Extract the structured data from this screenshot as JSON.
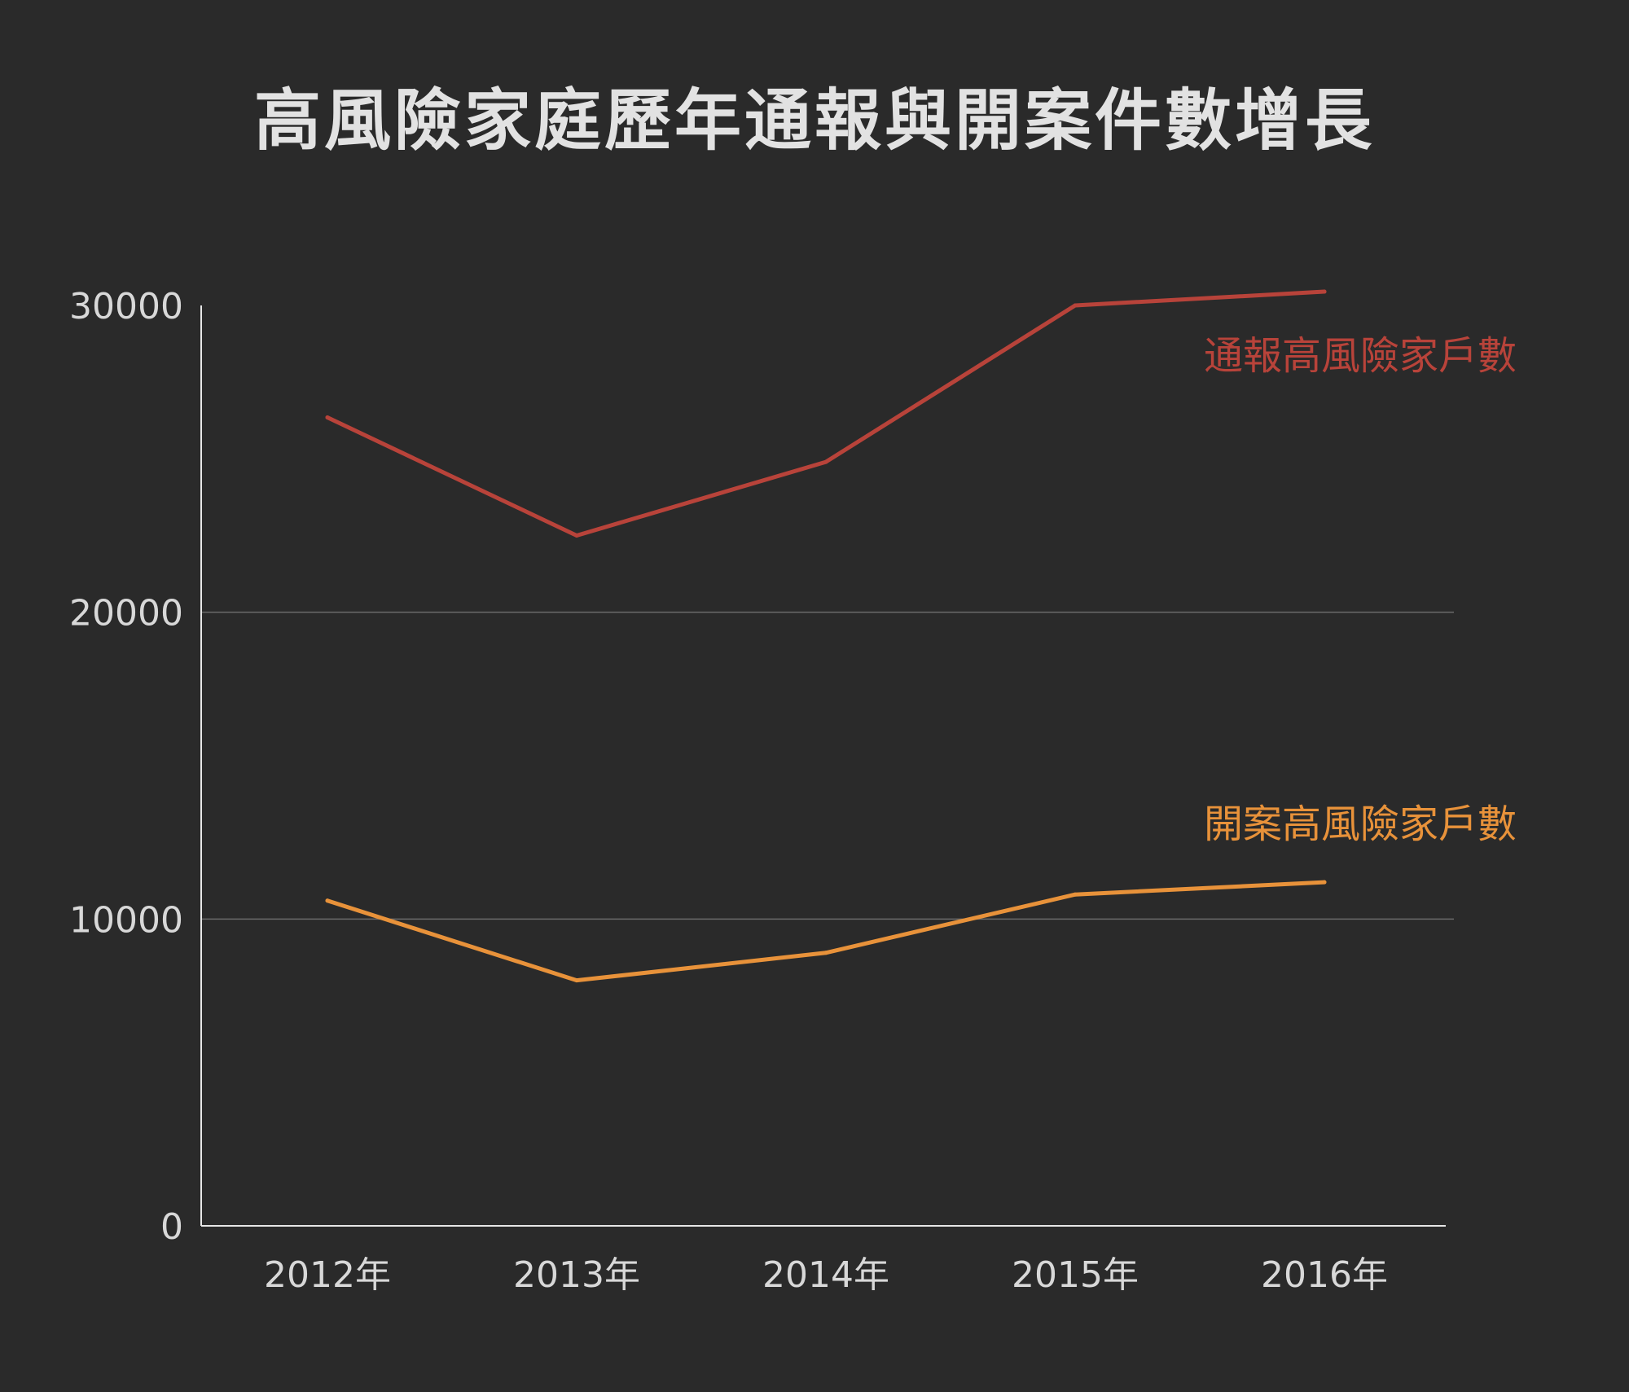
{
  "chart_data": {
    "type": "line",
    "title": "高風險家庭歷年通報與開案件數增長",
    "categories": [
      "2012年",
      "2013年",
      "2014年",
      "2015年",
      "2016年"
    ],
    "yticks": [
      "0",
      "10000",
      "20000",
      "30000"
    ],
    "ylim": [
      0,
      30000
    ],
    "grid": true,
    "legend": "inline-right",
    "series": [
      {
        "name": "通報高風險家戶數",
        "color": "#b8433a",
        "values": [
          26350,
          22500,
          24900,
          30000,
          30450
        ]
      },
      {
        "name": "開案高風險家戶數",
        "color": "#e8923a",
        "values": [
          10600,
          8000,
          8900,
          10800,
          11200
        ]
      }
    ]
  },
  "colors": {
    "background": "#2a2a2a",
    "text": "#d8d8d8",
    "axis": "#e6e6e6",
    "grid": "#6a6a6a"
  }
}
